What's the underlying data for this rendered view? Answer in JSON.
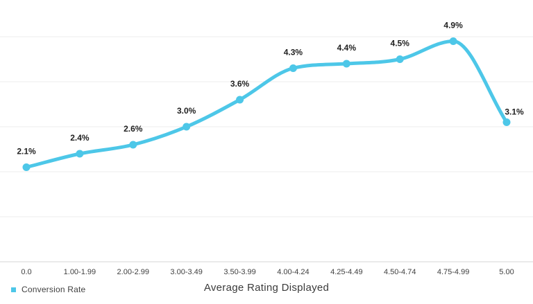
{
  "chart_data": {
    "type": "line",
    "title": "",
    "xlabel": "Average Rating Displayed",
    "ylabel": "",
    "categories": [
      "0.0",
      "1.00-1.99",
      "2.00-2.99",
      "3.00-3.49",
      "3.50-3.99",
      "4.00-4.24",
      "4.25-4.49",
      "4.50-4.74",
      "4.75-4.99",
      "5.00"
    ],
    "series": [
      {
        "name": "Conversion Rate",
        "values": [
          2.1,
          2.4,
          2.6,
          3.0,
          3.6,
          4.3,
          4.4,
          4.5,
          4.9,
          3.1
        ],
        "point_labels": [
          "2.1%",
          "2.4%",
          "2.6%",
          "3.0%",
          "3.6%",
          "4.3%",
          "4.4%",
          "4.5%",
          "4.9%",
          "3.1%"
        ],
        "color": "#4DC7E8"
      }
    ],
    "ylim": [
      0,
      5
    ],
    "grid": "horizontal",
    "gridline_interval": 1,
    "legend_position": "bottom-left"
  },
  "legend": {
    "label": "Conversion Rate",
    "swatch_color": "#4DC7E8"
  },
  "colors": {
    "line": "#4DC7E8",
    "gridline": "#ececec",
    "axis_line": "#d4d4d4",
    "data_label": "#1f1f1f",
    "tick_label": "#3f3f3f",
    "axis_title": "#3a3a3a",
    "background": "#ffffff"
  }
}
